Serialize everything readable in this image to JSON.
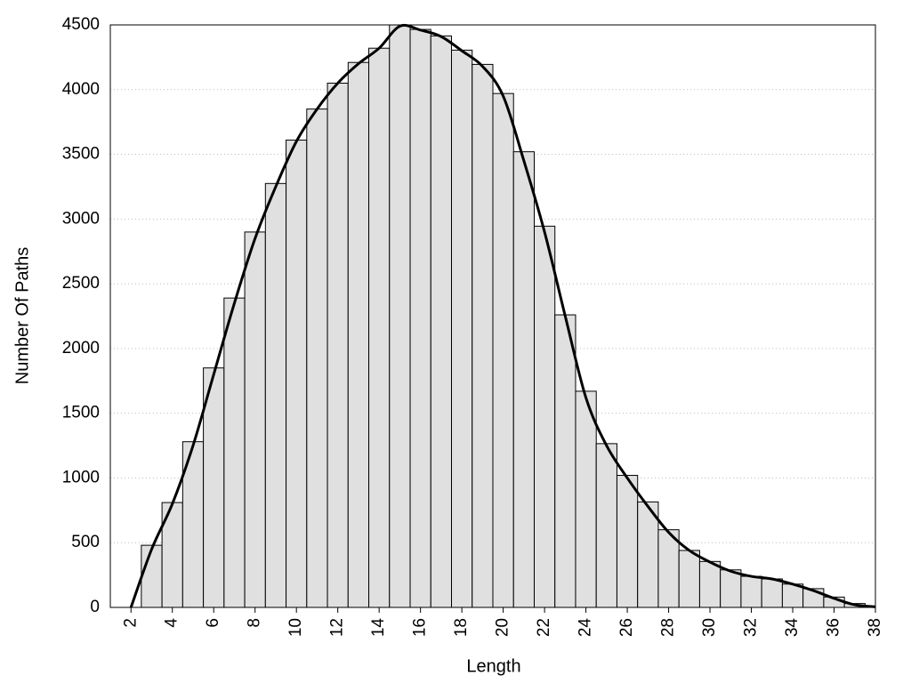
{
  "chart_data": {
    "type": "histogram",
    "x_label": "Length",
    "y_label": "Number Of Paths",
    "bins": [
      2.5,
      3.5,
      4.5,
      5.5,
      6.5,
      7.5,
      8.5,
      9.5,
      10.5,
      11.5,
      12.5,
      13.5,
      14.5,
      15.5,
      16.5,
      17.5,
      18.5,
      19.5,
      20.5,
      21.5,
      22.5,
      23.5,
      24.5,
      25.5,
      26.5,
      27.5,
      28.5,
      29.5,
      30.5,
      31.5,
      32.5,
      33.5,
      34.5,
      35.5,
      36.5,
      37.5
    ],
    "counts": [
      480,
      810,
      1280,
      1850,
      2390,
      2900,
      3275,
      3610,
      3850,
      4050,
      4210,
      4320,
      4500,
      4465,
      4415,
      4305,
      4195,
      3970,
      3520,
      2945,
      2260,
      1670,
      1265,
      1020,
      815,
      600,
      440,
      355,
      290,
      240,
      220,
      180,
      145,
      80,
      30
    ],
    "color": "#e0e0e0",
    "curve": {
      "color": "#000000",
      "x": [
        2,
        3,
        4,
        5,
        6,
        7,
        8,
        9,
        10,
        11,
        12,
        13,
        14,
        15,
        16,
        17,
        18,
        19,
        20,
        21,
        22,
        23,
        24,
        25,
        26,
        27,
        28,
        29,
        30,
        31,
        32,
        33,
        34,
        35,
        36,
        37,
        38
      ],
      "values": [
        0,
        450,
        800,
        1250,
        1800,
        2350,
        2850,
        3250,
        3600,
        3850,
        4050,
        4200,
        4320,
        4490,
        4460,
        4410,
        4300,
        4180,
        3950,
        3450,
        2900,
        2250,
        1620,
        1250,
        1000,
        780,
        580,
        440,
        350,
        280,
        240,
        220,
        180,
        130,
        70,
        20,
        5
      ]
    },
    "xlim": [
      1,
      38
    ],
    "ylim": [
      0,
      4500
    ],
    "xticks": [
      2,
      4,
      6,
      8,
      10,
      12,
      14,
      16,
      18,
      20,
      22,
      24,
      26,
      28,
      30,
      32,
      34,
      36,
      38
    ],
    "yticks": [
      0,
      500,
      1000,
      1500,
      2000,
      2500,
      3000,
      3500,
      4000,
      4500
    ],
    "grid": true
  }
}
